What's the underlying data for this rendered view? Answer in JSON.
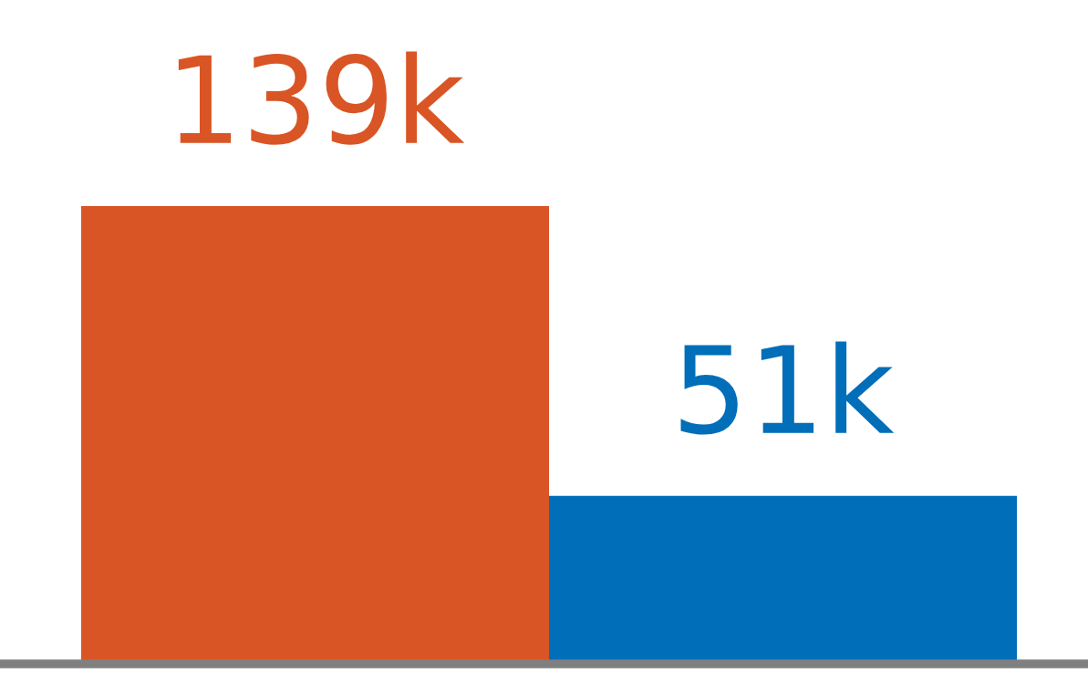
{
  "chart_data": {
    "type": "bar",
    "categories": [
      null,
      null
    ],
    "values": [
      139000,
      51000
    ],
    "colors": [
      "#d95525",
      "#006eb9"
    ],
    "value_labels": [
      "139k",
      "51k"
    ],
    "grid": false,
    "legend": false
  }
}
